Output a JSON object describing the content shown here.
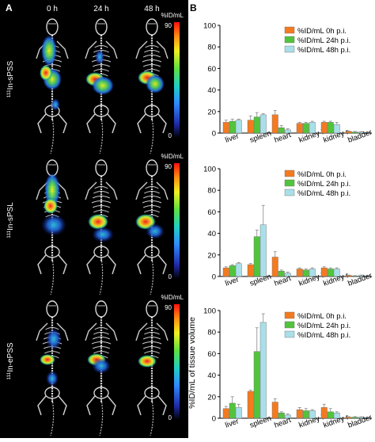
{
  "panel_a": {
    "label": "A",
    "time_labels": [
      "0 h",
      "24 h",
      "48 h"
    ],
    "rows": [
      {
        "sup": "111",
        "name": "In-sPSS"
      },
      {
        "sup": "111",
        "name": "In-sPSL"
      },
      {
        "sup": "111",
        "name": "In-ePSS"
      }
    ],
    "colorbar": {
      "unit": "%ID/mL",
      "max_label": "90",
      "min_label": "0"
    }
  },
  "panel_b": {
    "label": "B"
  },
  "chart_data": [
    {
      "type": "bar",
      "categories": [
        "liver",
        "spleen",
        "heart",
        "kidney l.",
        "kidney r.",
        "bladder"
      ],
      "series": [
        {
          "name": "%ID/mL 0h p.i.",
          "values": [
            10,
            12,
            17,
            9,
            10,
            1.5
          ],
          "errors": [
            2,
            4,
            4,
            1,
            1,
            0.5
          ]
        },
        {
          "name": "%ID/mL 24h p.i.",
          "values": [
            11,
            15,
            5,
            9,
            10,
            1
          ],
          "errors": [
            2,
            4,
            2,
            1,
            1,
            0.5
          ]
        },
        {
          "name": "%ID/mL 48h p.i.",
          "values": [
            12,
            17,
            3,
            10,
            8,
            1
          ],
          "errors": [
            1,
            1,
            1,
            1,
            2,
            0.3
          ]
        }
      ],
      "yticks": [
        0,
        20,
        40,
        60,
        80,
        100
      ],
      "ylim": [
        0,
        100
      ],
      "legend": "top-right"
    },
    {
      "type": "bar",
      "categories": [
        "liver",
        "spleen",
        "heart",
        "kidney l.",
        "kidney r.",
        "bladder"
      ],
      "series": [
        {
          "name": "%ID/mL 0h p.i.",
          "values": [
            8,
            11,
            18,
            7,
            8,
            1
          ],
          "errors": [
            1,
            1,
            5,
            1,
            1,
            0.3
          ]
        },
        {
          "name": "%ID/mL 24h p.i.",
          "values": [
            10,
            37,
            5,
            6,
            7,
            0.5
          ],
          "errors": [
            1,
            6,
            1,
            1,
            1,
            0.3
          ]
        },
        {
          "name": "%ID/mL 48h p.i.",
          "values": [
            12,
            48,
            3,
            7,
            7,
            1
          ],
          "errors": [
            1,
            18,
            1,
            1,
            1,
            0.3
          ]
        }
      ],
      "yticks": [
        0,
        20,
        40,
        60,
        80,
        100
      ],
      "ylim": [
        0,
        100
      ],
      "legend": "top-right"
    },
    {
      "type": "bar",
      "categories": [
        "liver",
        "spleen",
        "heart",
        "kidney l.",
        "kidney r.",
        "bladder"
      ],
      "series": [
        {
          "name": "%ID/mL 0h p.i.",
          "values": [
            9,
            25,
            15,
            8,
            10,
            1
          ],
          "errors": [
            2,
            1,
            3,
            2,
            3,
            0.5
          ]
        },
        {
          "name": "%ID/mL 24h p.i.",
          "values": [
            14,
            62,
            5,
            7,
            6,
            1
          ],
          "errors": [
            6,
            22,
            1,
            2,
            3,
            0.5
          ]
        },
        {
          "name": "%ID/mL 48h p.i.",
          "values": [
            10,
            89,
            3,
            7,
            5,
            1
          ],
          "errors": [
            3,
            8,
            1,
            1,
            1,
            0.3
          ]
        }
      ],
      "ylabel": "%ID/mL of tissue volume",
      "yticks": [
        0,
        20,
        40,
        60,
        80,
        100
      ],
      "ylim": [
        0,
        100
      ],
      "legend": "top-right"
    }
  ],
  "colors": {
    "series": [
      "#f47a20",
      "#52c43c",
      "#a9dfe9"
    ],
    "panel_bg": "#000000"
  }
}
